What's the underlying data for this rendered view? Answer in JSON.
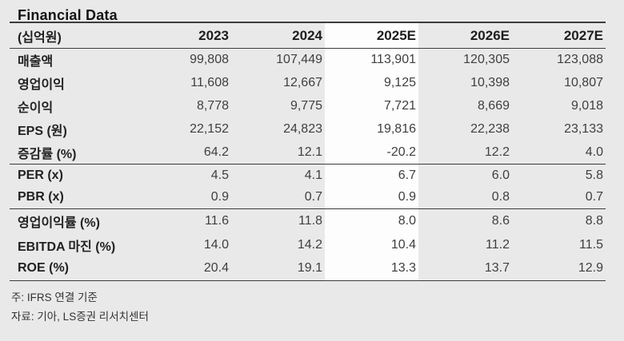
{
  "title": "Financial Data",
  "table": {
    "unit_label": "(십억원)",
    "columns": [
      "2023",
      "2024",
      "2025E",
      "2026E",
      "2027E"
    ],
    "highlight_column": "2025E",
    "sections": [
      {
        "rows": [
          {
            "label": "매출액",
            "values": [
              "99,808",
              "107,449",
              "113,901",
              "120,305",
              "123,088"
            ]
          },
          {
            "label": "영업이익",
            "values": [
              "11,608",
              "12,667",
              "9,125",
              "10,398",
              "10,807"
            ]
          },
          {
            "label": "순이익",
            "values": [
              "8,778",
              "9,775",
              "7,721",
              "8,669",
              "9,018"
            ]
          },
          {
            "label": "EPS (원)",
            "values": [
              "22,152",
              "24,823",
              "19,816",
              "22,238",
              "23,133"
            ]
          },
          {
            "label": "증감률 (%)",
            "values": [
              "64.2",
              "12.1",
              "-20.2",
              "12.2",
              "4.0"
            ]
          }
        ]
      },
      {
        "rows": [
          {
            "label": "PER (x)",
            "values": [
              "4.5",
              "4.1",
              "6.7",
              "6.0",
              "5.8"
            ]
          },
          {
            "label": "PBR (x)",
            "values": [
              "0.9",
              "0.7",
              "0.9",
              "0.8",
              "0.7"
            ]
          }
        ]
      },
      {
        "rows": [
          {
            "label": "영업이익률 (%)",
            "values": [
              "11.6",
              "11.8",
              "8.0",
              "8.6",
              "8.8"
            ]
          },
          {
            "label": "EBITDA 마진 (%)",
            "values": [
              "14.0",
              "14.2",
              "10.4",
              "11.2",
              "11.5"
            ]
          },
          {
            "label": "ROE (%)",
            "values": [
              "20.4",
              "19.1",
              "13.3",
              "13.7",
              "12.9"
            ]
          }
        ]
      }
    ],
    "footnotes": [
      "주: IFRS 연결 기준",
      "자료: 기아, LS증권 리서치센터"
    ]
  },
  "colors": {
    "page_background": "#e9e9e9",
    "highlight_column_background": "#fdfdfd",
    "rule_line": "#3c3c3c",
    "title_text": "#141414",
    "number_text": "#3f3f3f"
  }
}
